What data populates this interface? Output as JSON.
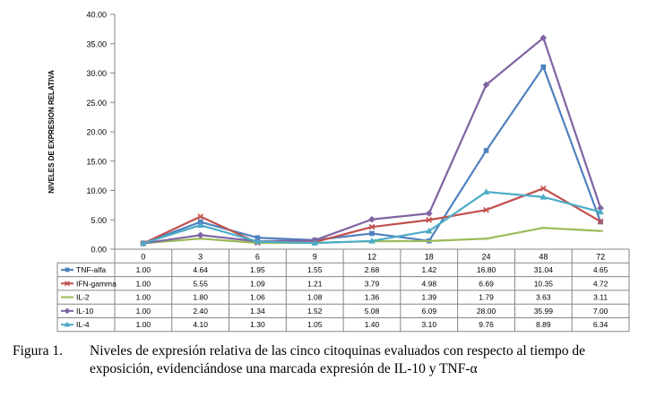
{
  "chart_data": {
    "type": "line",
    "title": "",
    "xlabel": "",
    "ylabel": "NIVELES DE EXPRESION RELATIVA",
    "ylim": [
      0,
      40
    ],
    "yticks": [
      "0.00",
      "5.00",
      "10.00",
      "15.00",
      "20.00",
      "25.00",
      "30.00",
      "35.00",
      "40.00"
    ],
    "categories": [
      "0",
      "3",
      "6",
      "9",
      "12",
      "18",
      "24",
      "48",
      "72"
    ],
    "grid": false,
    "legend": "data-table",
    "series": [
      {
        "name": "TNF-alfa",
        "color": "#4f81bd",
        "marker": "square",
        "values": [
          1.0,
          4.64,
          1.95,
          1.55,
          2.68,
          1.42,
          16.8,
          31.04,
          4.65
        ],
        "labels": [
          "1.00",
          "4.64",
          "1.95",
          "1.55",
          "2.68",
          "1.42",
          "16.80",
          "31.04",
          "4.65"
        ]
      },
      {
        "name": "IFN-gamma",
        "color": "#c0504d",
        "marker": "x",
        "values": [
          1.0,
          5.55,
          1.09,
          1.21,
          3.79,
          4.98,
          6.69,
          10.35,
          4.72
        ],
        "labels": [
          "1.00",
          "5.55",
          "1.09",
          "1.21",
          "3.79",
          "4.98",
          "6.69",
          "10.35",
          "4.72"
        ]
      },
      {
        "name": "IL-2",
        "color": "#9bbb59",
        "marker": "dash",
        "values": [
          1.0,
          1.8,
          1.06,
          1.08,
          1.36,
          1.39,
          1.79,
          3.63,
          3.11
        ],
        "labels": [
          "1.00",
          "1.80",
          "1.06",
          "1.08",
          "1.36",
          "1.39",
          "1.79",
          "3.63",
          "3.11"
        ]
      },
      {
        "name": "IL-10",
        "color": "#8064a2",
        "marker": "diamond",
        "values": [
          1.0,
          2.4,
          1.34,
          1.52,
          5.08,
          6.09,
          28.0,
          35.99,
          7.0
        ],
        "labels": [
          "1.00",
          "2.40",
          "1.34",
          "1.52",
          "5.08",
          "6.09",
          "28.00",
          "35.99",
          "7.00"
        ]
      },
      {
        "name": "IL-4",
        "color": "#4bacc6",
        "marker": "triangle",
        "values": [
          1.0,
          4.1,
          1.3,
          1.05,
          1.4,
          3.1,
          9.76,
          8.89,
          6.34
        ],
        "labels": [
          "1.00",
          "4.10",
          "1.30",
          "1.05",
          "1.40",
          "3.10",
          "9.76",
          "8.89",
          "6.34"
        ]
      }
    ]
  },
  "caption": {
    "label": "Figura 1.",
    "text": "Niveles de expresión relativa de las cinco citoquinas evaluados con respecto al tiempo de exposición, evidenciándose una marcada expresión de IL-10 y TNF-α"
  }
}
